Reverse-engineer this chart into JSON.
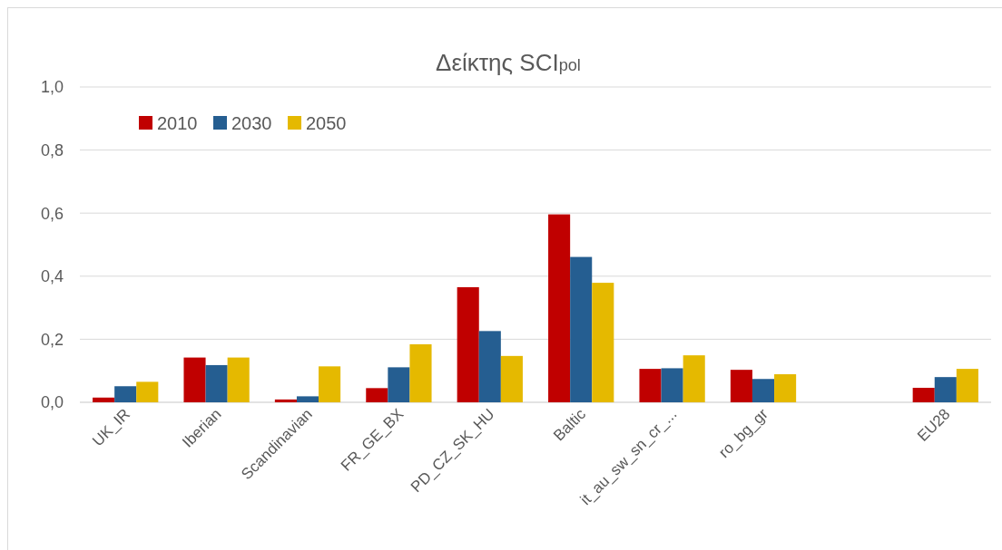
{
  "chart_data": {
    "type": "bar",
    "title": "Δείκτης SCI$_{pol}$",
    "categories": [
      "UK_IR",
      "Iberian",
      "Scandinavian",
      "FR_GE_BX",
      "PD_CZ_SK_HU",
      "Baltic",
      "it_au_sw_sn_cr_...",
      "ro_bg_gr",
      null,
      "EU28"
    ],
    "series": [
      {
        "name": "2010",
        "color": "#c00000",
        "values": [
          0.015,
          0.142,
          0.009,
          0.045,
          0.365,
          0.596,
          0.106,
          0.103,
          null,
          0.046
        ]
      },
      {
        "name": "2030",
        "color": "#255e91",
        "values": [
          0.051,
          0.118,
          0.019,
          0.111,
          0.226,
          0.461,
          0.108,
          0.074,
          null,
          0.08
        ]
      },
      {
        "name": "2050",
        "color": "#e5b900",
        "values": [
          0.065,
          0.142,
          0.114,
          0.184,
          0.147,
          0.379,
          0.149,
          0.089,
          null,
          0.106
        ]
      }
    ],
    "ylim": [
      0,
      1
    ],
    "yticks": [
      {
        "value": 0,
        "label": "0,0"
      },
      {
        "value": 0.2,
        "label": "0,2"
      },
      {
        "value": 0.4,
        "label": "0,4"
      },
      {
        "value": 0.6,
        "label": "0,6"
      },
      {
        "value": 0.8,
        "label": "0,8"
      },
      {
        "value": 1,
        "label": "1,0"
      }
    ],
    "grid": "y",
    "legend": "top left"
  }
}
